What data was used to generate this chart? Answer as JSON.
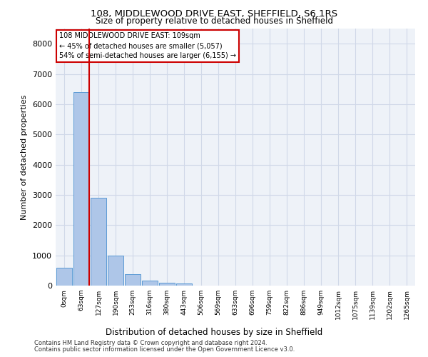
{
  "title1": "108, MIDDLEWOOD DRIVE EAST, SHEFFIELD, S6 1RS",
  "title2": "Size of property relative to detached houses in Sheffield",
  "xlabel": "Distribution of detached houses by size in Sheffield",
  "ylabel": "Number of detached properties",
  "bar_labels": [
    "0sqm",
    "63sqm",
    "127sqm",
    "190sqm",
    "253sqm",
    "316sqm",
    "380sqm",
    "443sqm",
    "506sqm",
    "569sqm",
    "633sqm",
    "696sqm",
    "759sqm",
    "822sqm",
    "886sqm",
    "949sqm",
    "1012sqm",
    "1075sqm",
    "1139sqm",
    "1202sqm",
    "1265sqm"
  ],
  "bar_values": [
    600,
    6400,
    2900,
    1000,
    380,
    170,
    100,
    80,
    0,
    0,
    0,
    0,
    0,
    0,
    0,
    0,
    0,
    0,
    0,
    0,
    0
  ],
  "bar_color": "#aec6e8",
  "bar_edge_color": "#5b9bd5",
  "grid_color": "#d0d8e8",
  "background_color": "#eef2f8",
  "vline_x": 1.45,
  "vline_color": "#cc0000",
  "annotation_text": "108 MIDDLEWOOD DRIVE EAST: 109sqm\n← 45% of detached houses are smaller (5,057)\n54% of semi-detached houses are larger (6,155) →",
  "annotation_box_color": "#ffffff",
  "annotation_box_edge": "#cc0000",
  "ylim": [
    0,
    8500
  ],
  "yticks": [
    0,
    1000,
    2000,
    3000,
    4000,
    5000,
    6000,
    7000,
    8000
  ],
  "footer1": "Contains HM Land Registry data © Crown copyright and database right 2024.",
  "footer2": "Contains public sector information licensed under the Open Government Licence v3.0."
}
